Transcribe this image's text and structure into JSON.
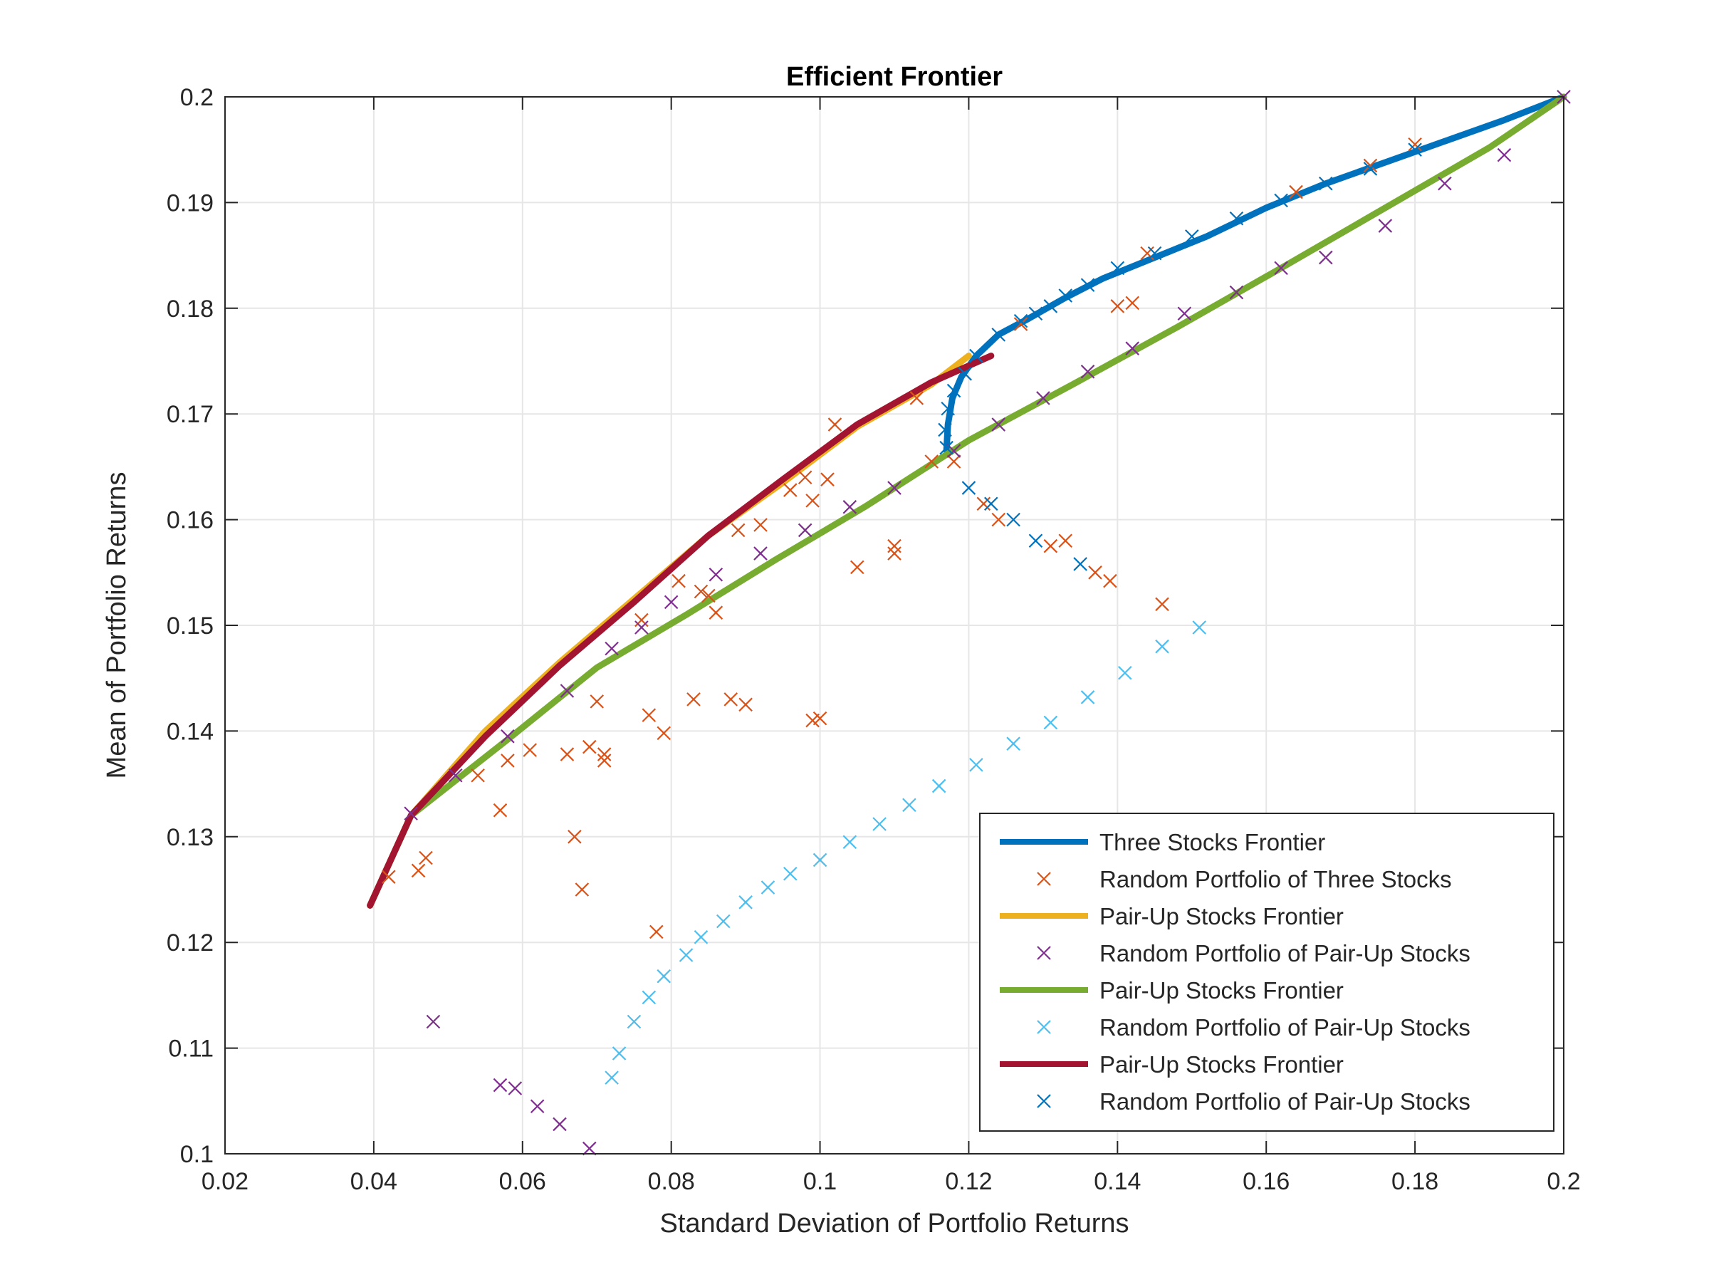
{
  "chart_data": {
    "type": "scatter",
    "title": "Efficient Frontier",
    "xlabel": "Standard Deviation of Portfolio Returns",
    "ylabel": "Mean of Portfolio Returns",
    "xlim": [
      0.02,
      0.2
    ],
    "ylim": [
      0.1,
      0.2
    ],
    "x_ticks": [
      "0.02",
      "0.04",
      "0.06",
      "0.08",
      "0.1",
      "0.12",
      "0.14",
      "0.16",
      "0.18",
      "0.2"
    ],
    "y_ticks": [
      "0.1",
      "0.11",
      "0.12",
      "0.13",
      "0.14",
      "0.15",
      "0.16",
      "0.17",
      "0.18",
      "0.19",
      "0.2"
    ],
    "grid": true,
    "legend_position": "bottom-right",
    "series": [
      {
        "name": "Three Stocks Frontier",
        "kind": "line",
        "color": "#0072BD",
        "x": [
          0.117,
          0.1172,
          0.1178,
          0.119,
          0.121,
          0.124,
          0.128,
          0.133,
          0.138,
          0.145,
          0.152,
          0.16,
          0.168,
          0.176,
          0.184,
          0.192,
          0.2
        ],
        "y": [
          0.1665,
          0.169,
          0.1715,
          0.1735,
          0.1755,
          0.1775,
          0.179,
          0.181,
          0.1828,
          0.1848,
          0.1868,
          0.1895,
          0.1918,
          0.1938,
          0.1958,
          0.1978,
          0.2
        ]
      },
      {
        "name": "Random Portfolio of Three Stocks",
        "kind": "marker",
        "color": "#D95319",
        "x": [
          0.042,
          0.046,
          0.047,
          0.054,
          0.057,
          0.058,
          0.061,
          0.066,
          0.067,
          0.068,
          0.069,
          0.07,
          0.071,
          0.071,
          0.077,
          0.078,
          0.079,
          0.083,
          0.086,
          0.088,
          0.09,
          0.099,
          0.1,
          0.105,
          0.11,
          0.11,
          0.118,
          0.122,
          0.124,
          0.131,
          0.133,
          0.137,
          0.139,
          0.146,
          0.14,
          0.142,
          0.098,
          0.099,
          0.084,
          0.096,
          0.102,
          0.113,
          0.089,
          0.076,
          0.085,
          0.081,
          0.092,
          0.101,
          0.127,
          0.115,
          0.164,
          0.174,
          0.18,
          0.144
        ],
        "y": [
          0.1262,
          0.1268,
          0.128,
          0.1358,
          0.1325,
          0.1372,
          0.1382,
          0.1378,
          0.13,
          0.125,
          0.1385,
          0.1428,
          0.1372,
          0.1378,
          0.1415,
          0.121,
          0.1398,
          0.143,
          0.1512,
          0.143,
          0.1425,
          0.141,
          0.1412,
          0.1555,
          0.1568,
          0.1575,
          0.1655,
          0.1615,
          0.16,
          0.1575,
          0.158,
          0.155,
          0.1542,
          0.152,
          0.1802,
          0.1805,
          0.164,
          0.1618,
          0.1532,
          0.1628,
          0.169,
          0.1715,
          0.159,
          0.1505,
          0.1528,
          0.1542,
          0.1595,
          0.1638,
          0.1785,
          0.1655,
          0.191,
          0.1935,
          0.1955,
          0.1852
        ]
      },
      {
        "name": "Pair-Up Stocks Frontier",
        "kind": "line",
        "color": "#EDB120",
        "x": [
          0.0395,
          0.045,
          0.055,
          0.065,
          0.075,
          0.085,
          0.095,
          0.105,
          0.115,
          0.12
        ],
        "y": [
          0.1235,
          0.132,
          0.14,
          0.1465,
          0.1525,
          0.1585,
          0.1635,
          0.1688,
          0.1728,
          0.1755
        ]
      },
      {
        "name": "Random Portfolio of Pair-Up Stocks",
        "kind": "marker",
        "color": "#7E2F8E",
        "x": [
          0.048,
          0.057,
          0.059,
          0.062,
          0.065,
          0.069,
          0.045,
          0.051,
          0.058,
          0.066,
          0.072,
          0.076,
          0.08,
          0.086,
          0.092,
          0.098,
          0.104,
          0.11,
          0.118,
          0.124,
          0.13,
          0.136,
          0.142,
          0.149,
          0.156,
          0.162,
          0.168,
          0.176,
          0.184,
          0.192,
          0.2
        ],
        "y": [
          0.1125,
          0.1065,
          0.1062,
          0.1045,
          0.1028,
          0.1005,
          0.1322,
          0.1358,
          0.1395,
          0.1438,
          0.1478,
          0.1498,
          0.1522,
          0.1548,
          0.1568,
          0.159,
          0.1612,
          0.163,
          0.1665,
          0.169,
          0.1715,
          0.174,
          0.1762,
          0.1795,
          0.1815,
          0.1838,
          0.1848,
          0.1878,
          0.1918,
          0.1945,
          0.2
        ]
      },
      {
        "name": "Pair-Up Stocks Frontier",
        "kind": "line",
        "color": "#77AC30",
        "x": [
          0.0395,
          0.045,
          0.058,
          0.07,
          0.082,
          0.094,
          0.106,
          0.12,
          0.134,
          0.148,
          0.162,
          0.176,
          0.19,
          0.2
        ],
        "y": [
          0.1235,
          0.132,
          0.1392,
          0.146,
          0.151,
          0.1562,
          0.1612,
          0.1675,
          0.1728,
          0.1782,
          0.1838,
          0.1895,
          0.1952,
          0.2
        ]
      },
      {
        "name": "Random Portfolio of Pair-Up Stocks",
        "kind": "marker",
        "color": "#4DBEEE",
        "x": [
          0.072,
          0.073,
          0.075,
          0.077,
          0.079,
          0.082,
          0.084,
          0.087,
          0.09,
          0.093,
          0.096,
          0.1,
          0.104,
          0.108,
          0.112,
          0.116,
          0.121,
          0.126,
          0.131,
          0.136,
          0.141,
          0.146,
          0.151
        ],
        "y": [
          0.1072,
          0.1095,
          0.1125,
          0.1148,
          0.1168,
          0.1188,
          0.1205,
          0.122,
          0.1238,
          0.1252,
          0.1265,
          0.1278,
          0.1295,
          0.1312,
          0.133,
          0.1348,
          0.1368,
          0.1388,
          0.1408,
          0.1432,
          0.1455,
          0.148,
          0.1498
        ]
      },
      {
        "name": "Pair-Up Stocks Frontier",
        "kind": "line",
        "color": "#A2142F",
        "x": [
          0.0395,
          0.045,
          0.055,
          0.065,
          0.075,
          0.085,
          0.095,
          0.105,
          0.115,
          0.123
        ],
        "y": [
          0.1235,
          0.132,
          0.1395,
          0.1462,
          0.1522,
          0.1585,
          0.1638,
          0.169,
          0.173,
          0.1755
        ]
      },
      {
        "name": "Random Portfolio of Pair-Up Stocks",
        "kind": "marker",
        "color": "#0072BD",
        "x": [
          0.117,
          0.1168,
          0.1172,
          0.118,
          0.1195,
          0.121,
          0.124,
          0.127,
          0.129,
          0.131,
          0.133,
          0.136,
          0.14,
          0.145,
          0.15,
          0.156,
          0.162,
          0.168,
          0.174,
          0.18,
          0.12,
          0.123,
          0.126,
          0.129,
          0.135
        ],
        "y": [
          0.1668,
          0.1685,
          0.1705,
          0.1722,
          0.1738,
          0.1755,
          0.1775,
          0.1788,
          0.1795,
          0.1802,
          0.1812,
          0.1822,
          0.1838,
          0.1852,
          0.1868,
          0.1885,
          0.1902,
          0.1918,
          0.1932,
          0.195,
          0.163,
          0.1615,
          0.16,
          0.158,
          0.1558
        ]
      }
    ]
  }
}
